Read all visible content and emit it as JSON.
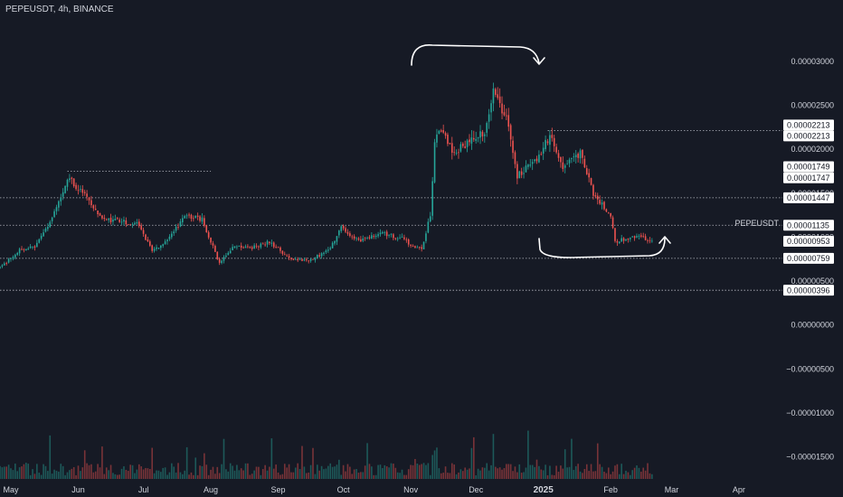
{
  "header": {
    "title": "PEPEUSDT, 4h, BINANCE"
  },
  "colors": {
    "background": "#161a25",
    "up": "#26a69a",
    "down": "#ef5350",
    "text": "#d1d4dc",
    "annotation": "#ffffff"
  },
  "chart_data": {
    "type": "candlestick",
    "symbol": "PEPEUSDT",
    "interval": "4h",
    "exchange": "BINANCE",
    "ylim": [
      -1.75e-05,
      3.45e-05
    ],
    "xlim": [
      "2024-04-26",
      "2025-04-21"
    ],
    "grid": false,
    "price_ticks": [
      {
        "v": 3e-05,
        "label": "0.00003000"
      },
      {
        "v": 2.5e-05,
        "label": "0.00002500"
      },
      {
        "v": 2e-05,
        "label": "0.00002000"
      },
      {
        "v": 1.5e-05,
        "label": "0.00001500"
      },
      {
        "v": 1e-05,
        "label": "0.00001000"
      },
      {
        "v": 5e-06,
        "label": "0.00000500"
      },
      {
        "v": 0.0,
        "label": "0.00000000"
      },
      {
        "v": -5e-06,
        "label": "−0.00000500"
      },
      {
        "v": -1e-05,
        "label": "−0.00001000"
      },
      {
        "v": -1.5e-05,
        "label": "−0.00001500"
      }
    ],
    "time_ticks": [
      {
        "date": "2024-05-01",
        "label": "May",
        "bold": false
      },
      {
        "date": "2024-06-01",
        "label": "Jun",
        "bold": false
      },
      {
        "date": "2024-07-01",
        "label": "Jul",
        "bold": false
      },
      {
        "date": "2024-08-01",
        "label": "Aug",
        "bold": false
      },
      {
        "date": "2024-09-01",
        "label": "Sep",
        "bold": false
      },
      {
        "date": "2024-10-01",
        "label": "Oct",
        "bold": false
      },
      {
        "date": "2024-11-01",
        "label": "Nov",
        "bold": false
      },
      {
        "date": "2024-12-01",
        "label": "Dec",
        "bold": false
      },
      {
        "date": "2025-01-01",
        "label": "2025",
        "bold": true
      },
      {
        "date": "2025-02-01",
        "label": "Feb",
        "bold": false
      },
      {
        "date": "2025-03-01",
        "label": "Mar",
        "bold": false
      },
      {
        "date": "2025-04-01",
        "label": "Apr",
        "bold": false
      }
    ],
    "price_path": [
      [
        "2024-04-26",
        6.5e-06
      ],
      [
        "2024-05-05",
        8.5e-06
      ],
      [
        "2024-05-12",
        8.9e-06
      ],
      [
        "2024-05-20",
        1.2e-05
      ],
      [
        "2024-05-27",
        1.68e-05
      ],
      [
        "2024-06-03",
        1.5e-05
      ],
      [
        "2024-06-12",
        1.2e-05
      ],
      [
        "2024-06-20",
        1.18e-05
      ],
      [
        "2024-06-28",
        1.15e-05
      ],
      [
        "2024-07-05",
        8.5e-06
      ],
      [
        "2024-07-12",
        9.5e-06
      ],
      [
        "2024-07-20",
        1.25e-05
      ],
      [
        "2024-07-28",
        1.2e-05
      ],
      [
        "2024-08-05",
        7e-06
      ],
      [
        "2024-08-12",
        9e-06
      ],
      [
        "2024-08-20",
        8.8e-06
      ],
      [
        "2024-08-28",
        9.5e-06
      ],
      [
        "2024-09-06",
        7.5e-06
      ],
      [
        "2024-09-15",
        7.3e-06
      ],
      [
        "2024-09-24",
        8.5e-06
      ],
      [
        "2024-09-30",
        1.1e-05
      ],
      [
        "2024-10-08",
        9.5e-06
      ],
      [
        "2024-10-18",
        1.05e-05
      ],
      [
        "2024-10-28",
        9.8e-06
      ],
      [
        "2024-11-06",
        8.5e-06
      ],
      [
        "2024-11-10",
        1.25e-05
      ],
      [
        "2024-11-12",
        2.05e-05
      ],
      [
        "2024-11-14",
        2.25e-05
      ],
      [
        "2024-11-21",
        1.95e-05
      ],
      [
        "2024-11-28",
        2.1e-05
      ],
      [
        "2024-12-05",
        2.2e-05
      ],
      [
        "2024-12-09",
        2.65e-05
      ],
      [
        "2024-12-15",
        2.35e-05
      ],
      [
        "2024-12-20",
        1.7e-05
      ],
      [
        "2024-12-28",
        1.85e-05
      ],
      [
        "2025-01-04",
        2.15e-05
      ],
      [
        "2025-01-10",
        1.8e-05
      ],
      [
        "2025-01-18",
        1.95e-05
      ],
      [
        "2025-01-24",
        1.5e-05
      ],
      [
        "2025-02-01",
        1.25e-05
      ],
      [
        "2025-02-03",
        9.5e-06
      ],
      [
        "2025-02-08",
        9.8e-06
      ],
      [
        "2025-02-15",
        1e-05
      ],
      [
        "2025-02-20",
        9.5e-06
      ]
    ],
    "last_price": 9.53e-06,
    "horizontal_lines": [
      {
        "price": 2.213e-05,
        "from": "2025-01-03",
        "to": "2025-04-21"
      },
      {
        "price": 1.749e-05,
        "from": "2024-05-27",
        "to": "2024-08-01"
      },
      {
        "price": 1.447e-05,
        "from": "2024-04-26",
        "to": "2025-04-21"
      },
      {
        "price": 1.135e-05,
        "from": "2024-04-26",
        "to": "2025-04-21"
      },
      {
        "price": 7.59e-06,
        "from": "2024-04-26",
        "to": "2025-04-21"
      },
      {
        "price": 3.96e-06,
        "from": "2024-04-26",
        "to": "2025-04-21"
      }
    ],
    "price_labels": [
      {
        "price": 2.213e-05,
        "label": "0.00002213",
        "offset": -6
      },
      {
        "price": 2.213e-05,
        "label": "0.00002213",
        "offset": 6
      },
      {
        "price": 1.749e-05,
        "label": "0.00001749",
        "offset": -5
      },
      {
        "price": 1.747e-05,
        "label": "0.00001747",
        "offset": 7
      },
      {
        "price": 1.447e-05,
        "label": "0.00001447",
        "offset": 0
      },
      {
        "price": 1.135e-05,
        "label": "0.00001135",
        "offset": 0
      },
      {
        "price": 9.53e-06,
        "label": "0.00000953",
        "offset": 0
      },
      {
        "price": 7.59e-06,
        "label": "0.00000759",
        "offset": 0
      },
      {
        "price": 3.96e-06,
        "label": "0.00000396",
        "offset": 0
      }
    ],
    "series_label": "PEPEUSDT"
  }
}
